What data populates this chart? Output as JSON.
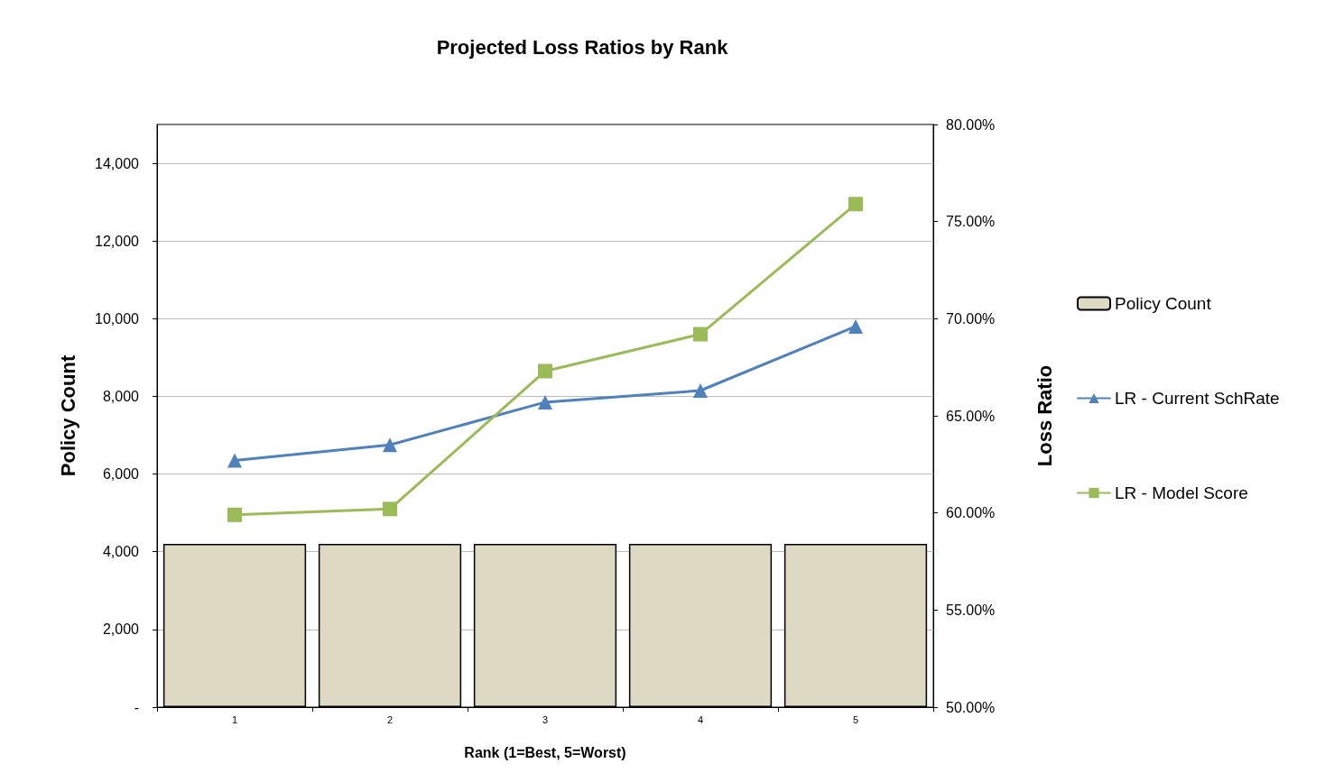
{
  "chart_data": {
    "type": "bar",
    "title": "Projected Loss Ratios by Rank",
    "xlabel": "Rank (1=Best, 5=Worst)",
    "ylabel": "Policy Count",
    "y2label": "Loss Ratio",
    "categories": [
      "1",
      "2",
      "3",
      "4",
      "5"
    ],
    "series": [
      {
        "name": "Policy Count",
        "color": "#ddd9c3",
        "values": [
          4200,
          4200,
          4200,
          4200,
          4200
        ]
      },
      {
        "name": "LR - Current SchRate",
        "type": "line",
        "axis": "y2",
        "marker": "triangle",
        "color": "#4f81bd",
        "values": [
          62.7,
          63.5,
          65.7,
          66.3,
          69.6
        ]
      },
      {
        "name": "LR - Model Score",
        "type": "line",
        "axis": "y2",
        "marker": "square",
        "color": "#9bbb59",
        "values": [
          59.9,
          60.2,
          67.3,
          69.2,
          75.9
        ]
      }
    ],
    "ylim": [
      0,
      15000
    ],
    "yticks": [
      {
        "value": 0,
        "label": "-"
      },
      {
        "value": 2000,
        "label": "2,000"
      },
      {
        "value": 4000,
        "label": "4,000"
      },
      {
        "value": 6000,
        "label": "6,000"
      },
      {
        "value": 8000,
        "label": "8,000"
      },
      {
        "value": 10000,
        "label": "10,000"
      },
      {
        "value": 12000,
        "label": "12,000"
      },
      {
        "value": 14000,
        "label": "14,000"
      }
    ],
    "y2lim": [
      50,
      80
    ],
    "y2ticks": [
      {
        "value": 50,
        "label": "50.00%"
      },
      {
        "value": 55,
        "label": "55.00%"
      },
      {
        "value": 60,
        "label": "60.00%"
      },
      {
        "value": 65,
        "label": "65.00%"
      },
      {
        "value": 70,
        "label": "70.00%"
      },
      {
        "value": 75,
        "label": "75.00%"
      },
      {
        "value": 80,
        "label": "80.00%"
      }
    ],
    "grid": "y",
    "legend": "right",
    "line_style": "solid"
  }
}
